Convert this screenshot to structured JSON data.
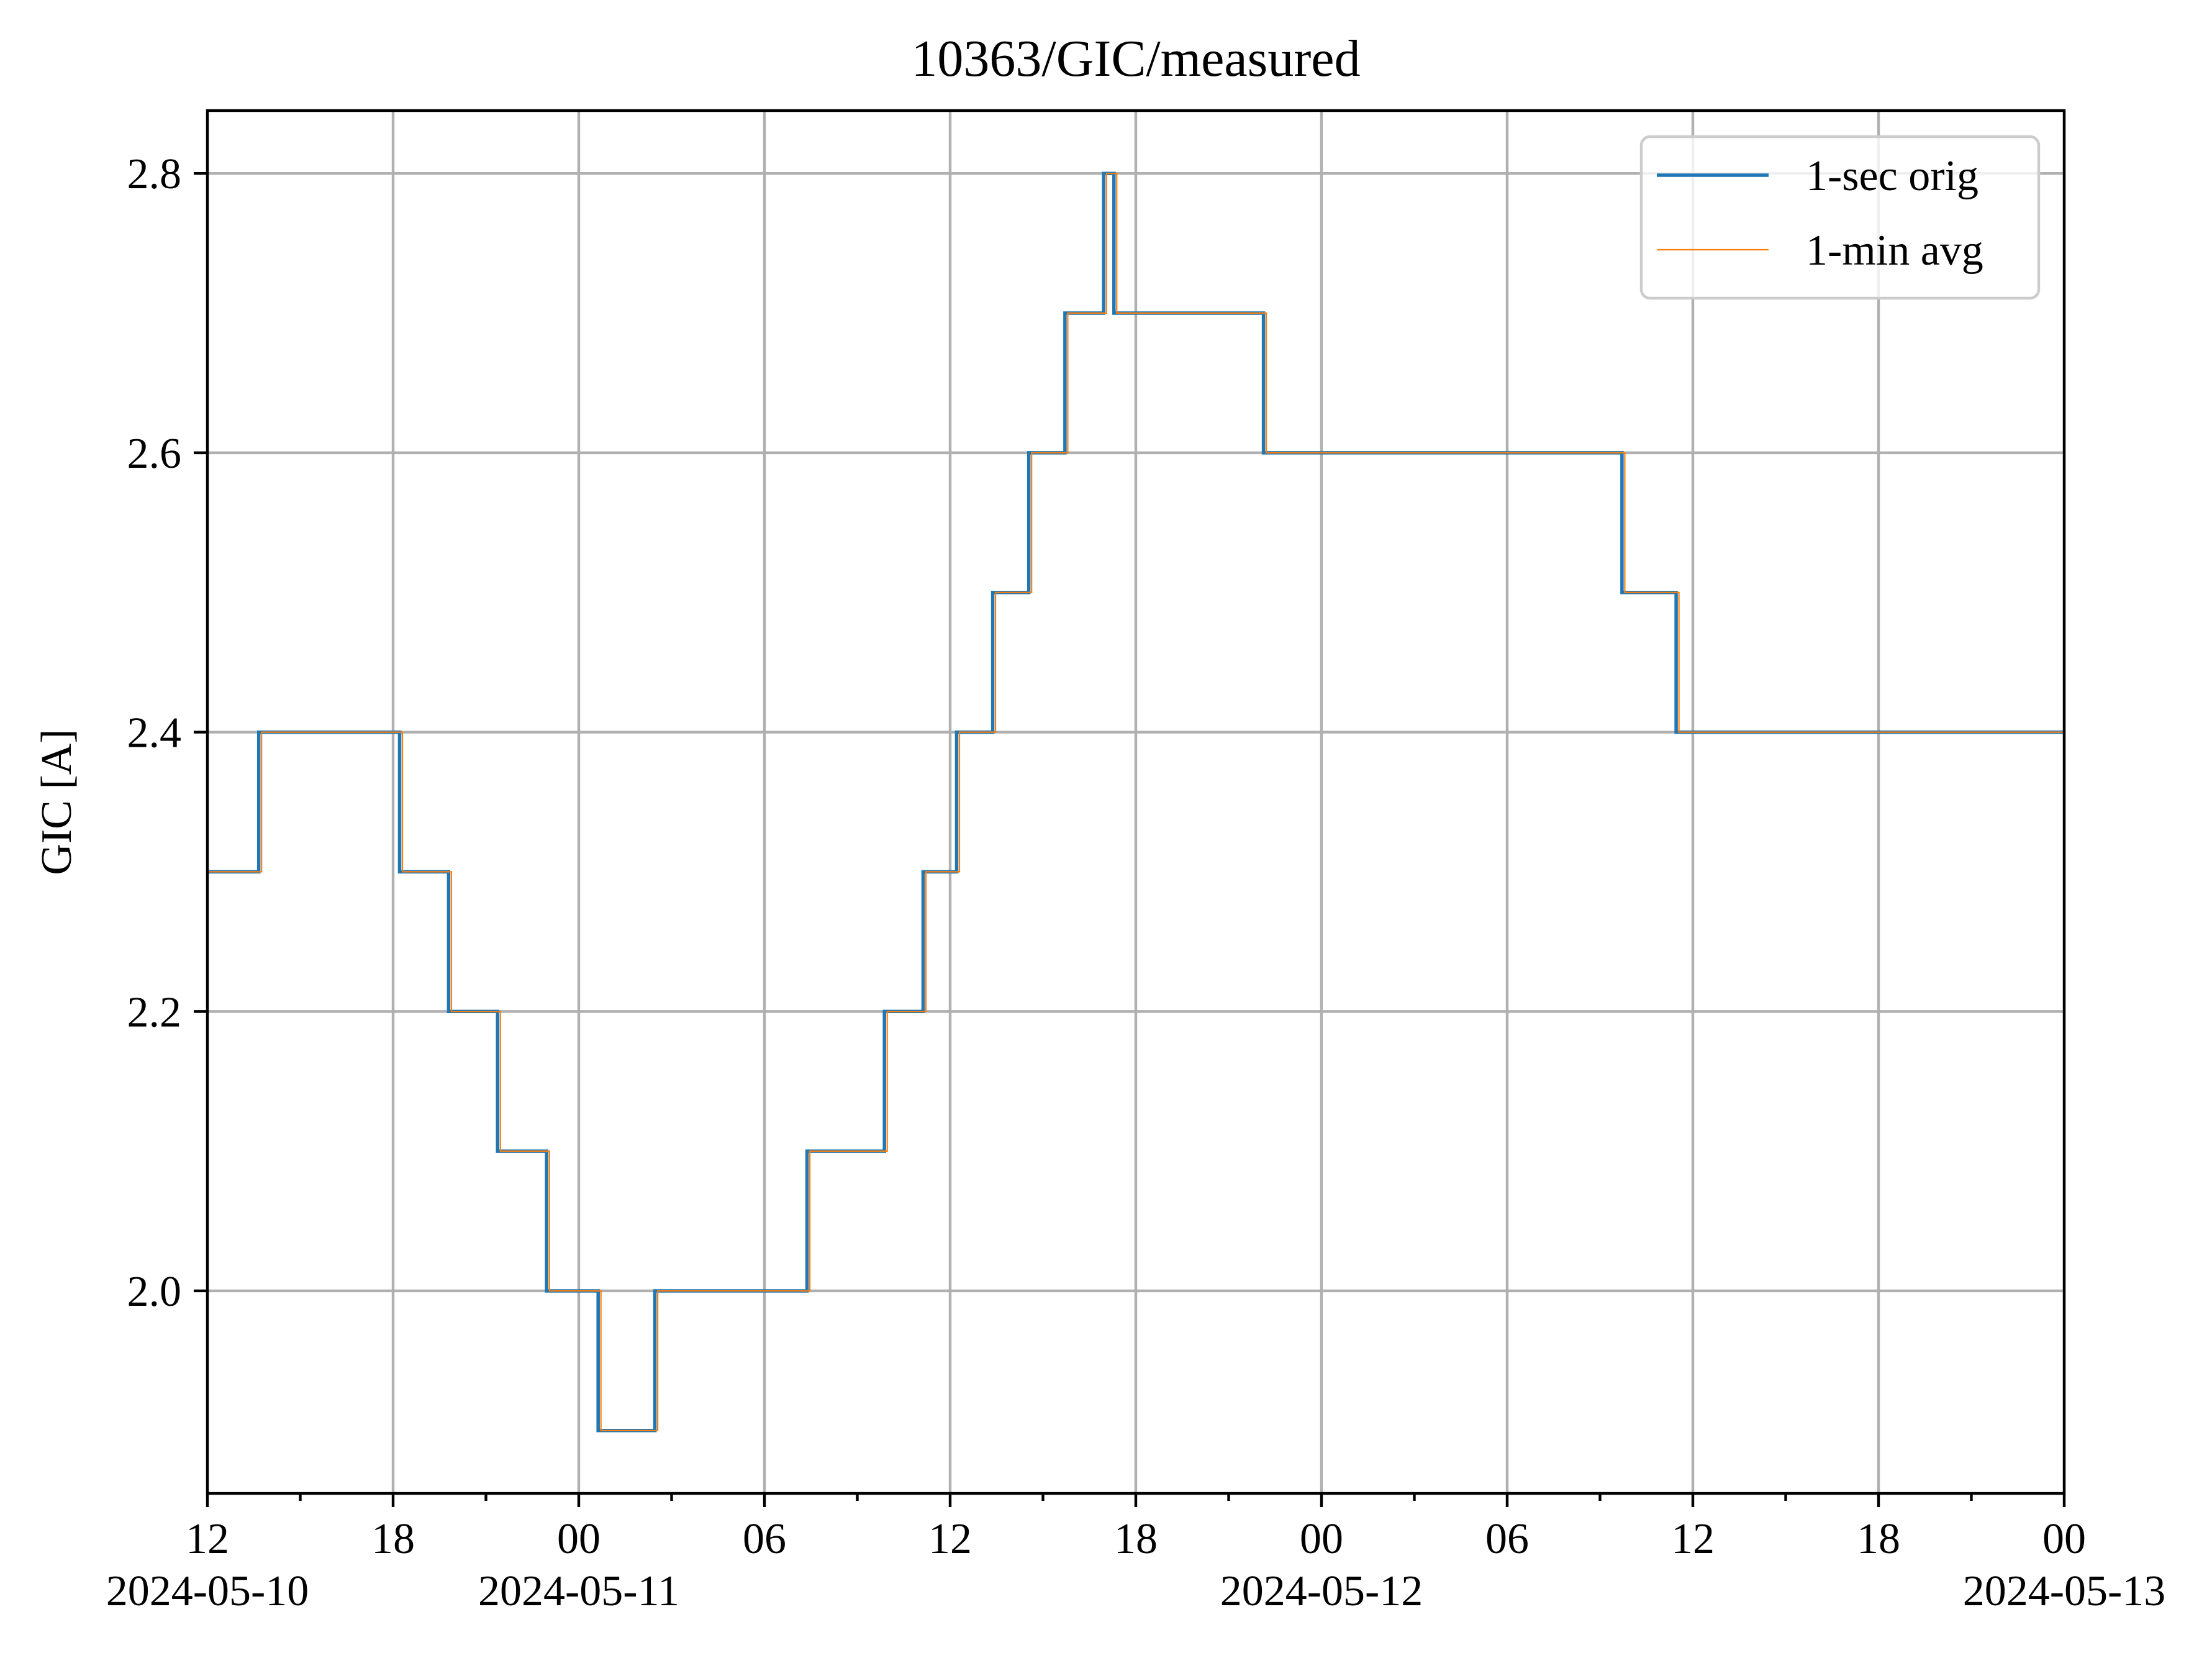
{
  "chart_data": {
    "type": "line",
    "title": "10363/GIC/measured",
    "xlabel": "",
    "ylabel": "GIC [A]",
    "xlim": [
      "2024-05-10 12:00",
      "2024-05-13 00:00"
    ],
    "ylim": [
      1.855,
      2.845
    ],
    "grid": true,
    "legend_position": "top-right",
    "x_ticks": [
      {
        "value": "2024-05-10 12:00",
        "label": "12",
        "sublabel": "2024-05-10"
      },
      {
        "value": "2024-05-10 18:00",
        "label": "18",
        "sublabel": ""
      },
      {
        "value": "2024-05-11 00:00",
        "label": "00",
        "sublabel": "2024-05-11"
      },
      {
        "value": "2024-05-11 06:00",
        "label": "06",
        "sublabel": ""
      },
      {
        "value": "2024-05-11 12:00",
        "label": "12",
        "sublabel": ""
      },
      {
        "value": "2024-05-11 18:00",
        "label": "18",
        "sublabel": ""
      },
      {
        "value": "2024-05-12 00:00",
        "label": "00",
        "sublabel": "2024-05-12"
      },
      {
        "value": "2024-05-12 06:00",
        "label": "06",
        "sublabel": ""
      },
      {
        "value": "2024-05-12 12:00",
        "label": "12",
        "sublabel": ""
      },
      {
        "value": "2024-05-12 18:00",
        "label": "18",
        "sublabel": ""
      },
      {
        "value": "2024-05-13 00:00",
        "label": "00",
        "sublabel": "2024-05-13"
      }
    ],
    "x_minor_ticks": [
      "2024-05-10 15:00",
      "2024-05-10 21:00",
      "2024-05-11 03:00",
      "2024-05-11 09:00",
      "2024-05-11 15:00",
      "2024-05-11 21:00",
      "2024-05-12 03:00",
      "2024-05-12 09:00",
      "2024-05-12 15:00",
      "2024-05-12 21:00"
    ],
    "y_ticks": [
      {
        "value": 2.0,
        "label": "2.0"
      },
      {
        "value": 2.2,
        "label": "2.2"
      },
      {
        "value": 2.4,
        "label": "2.4"
      },
      {
        "value": 2.6,
        "label": "2.6"
      },
      {
        "value": 2.8,
        "label": "2.8"
      }
    ],
    "series": [
      {
        "name": "1-sec orig",
        "color": "#1f77b4",
        "step": true,
        "x": [
          "2024-05-10 12:00",
          "2024-05-10 13:42",
          "2024-05-10 18:15",
          "2024-05-10 19:50",
          "2024-05-10 21:25",
          "2024-05-10 23:00",
          "2024-05-11 00:40",
          "2024-05-11 02:30",
          "2024-05-11 07:25",
          "2024-05-11 09:55",
          "2024-05-11 11:10",
          "2024-05-11 12:15",
          "2024-05-11 13:25",
          "2024-05-11 14:35",
          "2024-05-11 15:45",
          "2024-05-11 17:00",
          "2024-05-11 17:20",
          "2024-05-11 22:10",
          "2024-05-12 09:45",
          "2024-05-12 11:30"
        ],
        "y": [
          2.3,
          2.4,
          2.3,
          2.2,
          2.1,
          2.0,
          1.9,
          2.0,
          2.1,
          2.2,
          2.3,
          2.4,
          2.5,
          2.6,
          2.7,
          2.8,
          2.7,
          2.6,
          2.5,
          2.4
        ]
      },
      {
        "name": "1-min avg",
        "color": "#ff7f0e",
        "step": true,
        "x": [
          "2024-05-10 12:00",
          "2024-05-10 13:42",
          "2024-05-10 18:15",
          "2024-05-10 19:50",
          "2024-05-10 21:25",
          "2024-05-10 23:00",
          "2024-05-11 00:40",
          "2024-05-11 02:30",
          "2024-05-11 07:25",
          "2024-05-11 09:55",
          "2024-05-11 11:10",
          "2024-05-11 12:15",
          "2024-05-11 13:25",
          "2024-05-11 14:35",
          "2024-05-11 15:45",
          "2024-05-11 17:00",
          "2024-05-11 17:20",
          "2024-05-11 22:10",
          "2024-05-12 09:45",
          "2024-05-12 11:30"
        ],
        "y": [
          2.3,
          2.4,
          2.3,
          2.2,
          2.1,
          2.0,
          1.9,
          2.0,
          2.1,
          2.2,
          2.3,
          2.4,
          2.5,
          2.6,
          2.7,
          2.8,
          2.7,
          2.6,
          2.5,
          2.4
        ]
      }
    ]
  }
}
